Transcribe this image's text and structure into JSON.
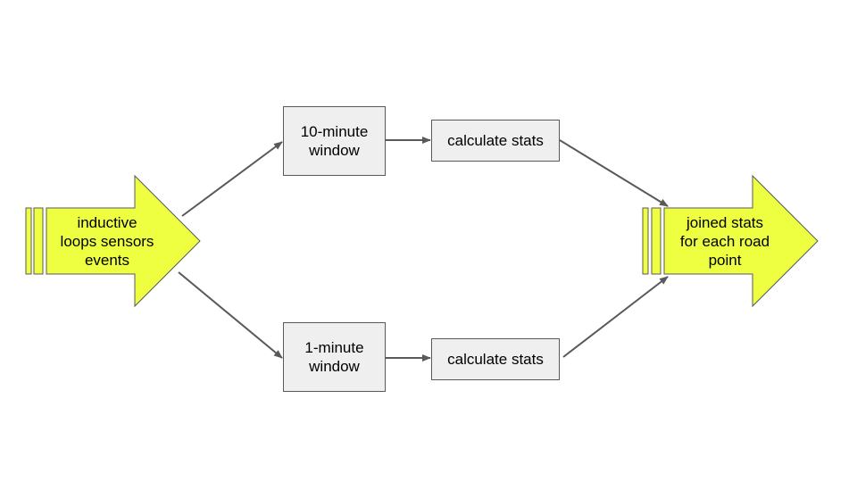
{
  "colors": {
    "stream_fill": "#eeff41",
    "stream_stroke": "#595959",
    "box_fill": "#efefef",
    "box_stroke": "#595959",
    "connector": "#595959",
    "text": "#000000"
  },
  "diagram": {
    "source_stream": {
      "label": "inductive\nloops sensors\nevents"
    },
    "window_10min": {
      "label": "10-minute\nwindow"
    },
    "window_1min": {
      "label": "1-minute\nwindow"
    },
    "stats_top": {
      "label": "calculate stats"
    },
    "stats_bottom": {
      "label": "calculate stats"
    },
    "output_stream": {
      "label": "joined stats\nfor each road\npoint"
    }
  }
}
